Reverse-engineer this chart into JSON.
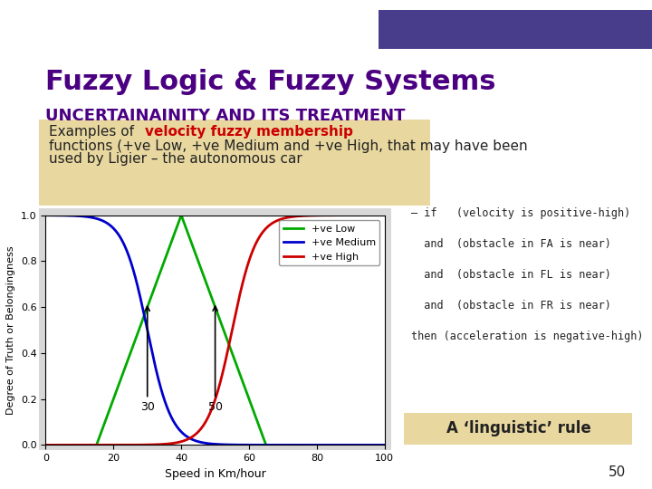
{
  "title_main": "Fuzzy Logic & Fuzzy Systems",
  "title_sub": "UNCERTAINAINITY AND ITS TREATMENT",
  "description_normal": "Examples of ",
  "description_red": "velocity fuzzy membership",
  "description_normal2": " functions (+ve\nLow, +ve Medium and +ve High, that may have been\nused by Ligier – the autonomous car",
  "xlabel": "Speed in Km/hour",
  "ylabel": "Degree of Truth or Belongingness",
  "xmin": 0,
  "xmax": 100,
  "ymin": 0,
  "ymax": 1,
  "xticks": [
    0,
    20,
    40,
    60,
    80,
    100
  ],
  "yticks": [
    0,
    0.2,
    0.4,
    0.6,
    0.8,
    1
  ],
  "legend_labels": [
    "+ve Low",
    "+ve Medium",
    "+ve High"
  ],
  "legend_colors": [
    "#00aa00",
    "#0000cc",
    "#cc0000"
  ],
  "bg_color": "#f0f0f0",
  "slide_bg": "#ffffff",
  "header_rect_color": "#4B0082",
  "desc_box_color": "#e8d8a0",
  "title_color": "#4B0082",
  "subtitle_color": "#4B0082",
  "red_text_color": "#cc0000",
  "annotation_30": "30",
  "annotation_50": "50",
  "rules_text": "– if   (velocity is positive-high)\n\n  and  (obstacle in FA is near)\n\n  and  (obstacle in FL is near)\n\n  and  (obstacle in FR is near)\n\nthen (acceleration is negative-high)",
  "linguistic_box_color": "#e8d8a0",
  "linguistic_text": "A ‘linguistic’ rule",
  "page_number": "50",
  "purple_rect": "#483D8B"
}
